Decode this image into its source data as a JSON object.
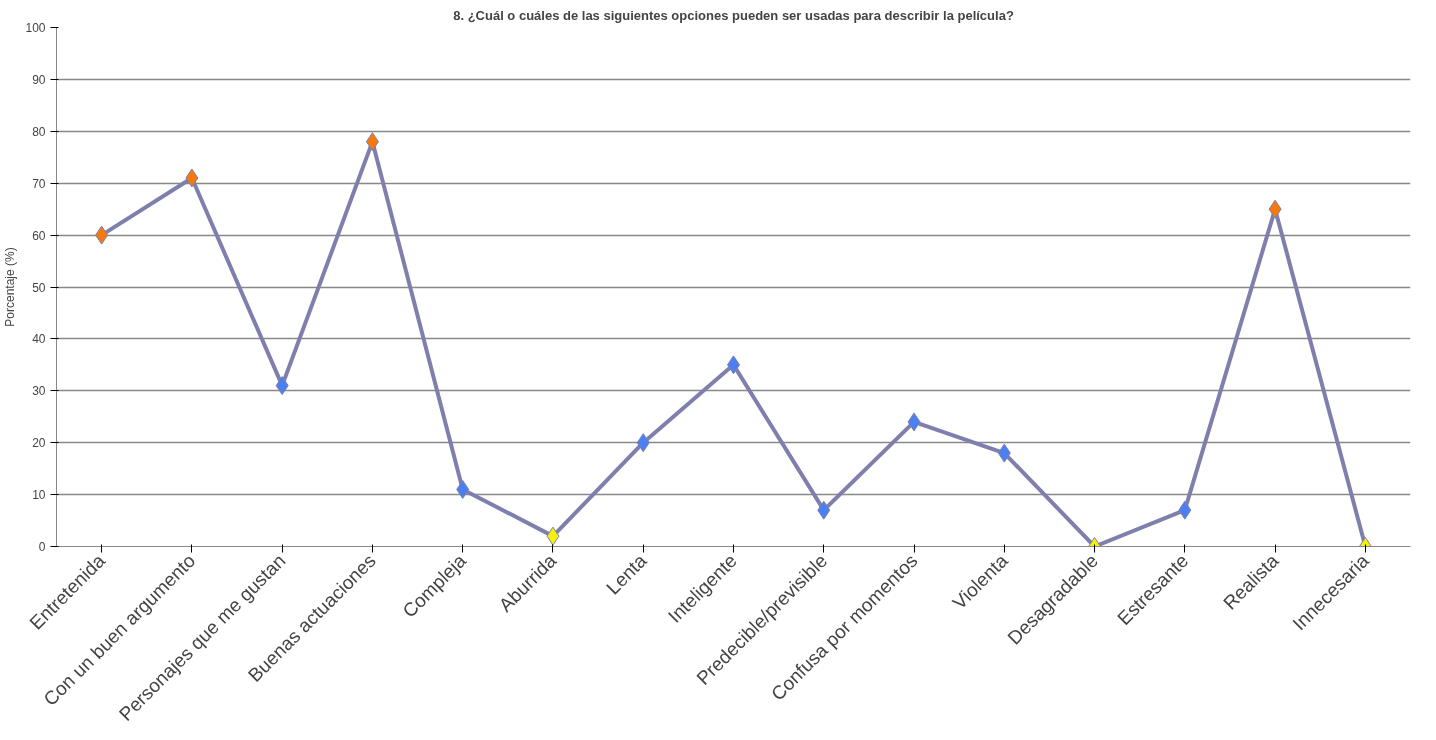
{
  "chart_data": {
    "type": "line",
    "title": "8. ¿Cuál o cuáles de las siguientes opciones pueden ser usadas para describir la película?",
    "ylabel": "Porcentaje (%)",
    "categories": [
      "Entretenida",
      "Con un buen argumento",
      "Personajes que me gustan",
      "Buenas actuaciones",
      "Compleja",
      "Aburrida",
      "Lenta",
      "Inteligente",
      "Predecible/previsible",
      "Confusa por momentos",
      "Violenta",
      "Desagradable",
      "Estresante",
      "Realista",
      "Innecesaria"
    ],
    "series": [
      {
        "color": "#7f7fae",
        "values": [
          60,
          71,
          31,
          78,
          11,
          2,
          20,
          35,
          7,
          24,
          18,
          0,
          7,
          65,
          0
        ],
        "colors": [
          "#f47a0e",
          "#f47a0e",
          "#4a80f0",
          "#f47a0e",
          "#4a80f0",
          "#f4ef0c",
          "#4a80f0",
          "#4a80f0",
          "#4a80f0",
          "#4a80f0",
          "#4a80f0",
          "#f4ef0c",
          "#4a80f0",
          "#f47a0e",
          "#f4ef0c"
        ]
      }
    ],
    "ylim": [
      0,
      100
    ],
    "yticks": [
      0,
      10,
      20,
      30,
      40,
      50,
      60,
      70,
      80,
      90,
      100
    ],
    "grid": "y",
    "marker": "diamond",
    "line_style": "solid"
  }
}
